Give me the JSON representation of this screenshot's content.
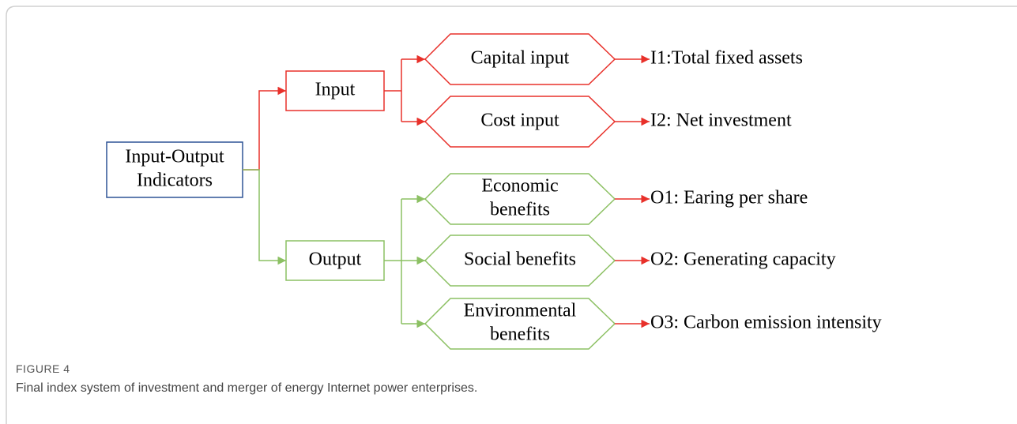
{
  "diagram": {
    "root": {
      "lines": [
        "Input-Output",
        "Indicators"
      ]
    },
    "groups": [
      {
        "label": "Input",
        "items": [
          {
            "lines": [
              "Capital input"
            ],
            "indicator": "I1:Total fixed assets"
          },
          {
            "lines": [
              "Cost input"
            ],
            "indicator": "I2: Net investment"
          }
        ]
      },
      {
        "label": "Output",
        "items": [
          {
            "lines": [
              "Economic",
              "benefits"
            ],
            "indicator": "O1: Earing per share"
          },
          {
            "lines": [
              "Social benefits"
            ],
            "indicator": "O2: Generating capacity"
          },
          {
            "lines": [
              "Environmental",
              "benefits"
            ],
            "indicator": "O3: Carbon emission intensity"
          }
        ]
      }
    ]
  },
  "caption": {
    "label": "FIGURE 4",
    "text": "Final index system of investment and merger of energy Internet power enterprises."
  }
}
